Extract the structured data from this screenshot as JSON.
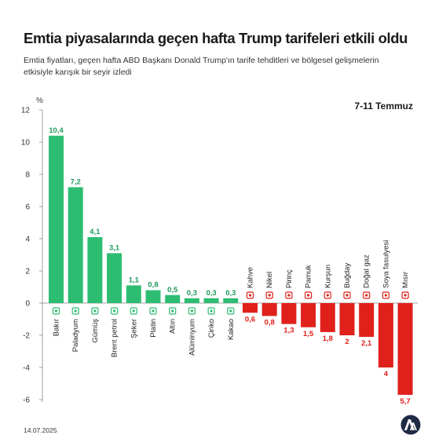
{
  "title": "Emtia piyasalarında geçen hafta Trump tarifeleri etkili oldu",
  "subtitle": "Emtia fiyatları, geçen hafta ABD Başkanı Donald Trump'ın tarife tehditleri ve bölgesel gelişmelerin etkisiyle karışık bir seyir izledi",
  "date_range": "7-11 Temmuz",
  "footer_date": "14.07.2025",
  "colors": {
    "positive": "#2dbd72",
    "negative": "#e0201b"
  },
  "chart_data": {
    "type": "bar",
    "ylabel": "%",
    "ylim": [
      -6,
      12
    ],
    "yticks": [
      -6,
      -4,
      -2,
      0,
      2,
      4,
      6,
      8,
      10,
      12
    ],
    "grid": false,
    "categories": [
      "Bakır",
      "Paladyum",
      "Gümüş",
      "Brent petrol",
      "Şeker",
      "Platin",
      "Altın",
      "Alüminyum",
      "Çinko",
      "Kakao",
      "Kahve",
      "Nikel",
      "Pirinç",
      "Pamuk",
      "Kurşun",
      "Buğday",
      "Doğal gaz",
      "Soya fasulyesi",
      "Mısır"
    ],
    "values": [
      10.4,
      7.2,
      4.1,
      3.1,
      1.1,
      0.8,
      0.5,
      0.3,
      0.3,
      0.3,
      -0.6,
      -0.8,
      -1.3,
      -1.5,
      -1.8,
      -2,
      -2.1,
      -4,
      -5.7
    ],
    "value_labels": [
      "10,4",
      "7,2",
      "4,1",
      "3,1",
      "1,1",
      "0,8",
      "0,5",
      "0,3",
      "0,3",
      "0,3",
      "0,6",
      "0,8",
      "1,3",
      "1,5",
      "1,8",
      "2",
      "2,1",
      "4",
      "5,7"
    ],
    "icons": [
      "copper-icon",
      "palladium-icon",
      "silver-icon",
      "oil-icon",
      "sugar-icon",
      "platinum-icon",
      "gold-icon",
      "aluminum-icon",
      "zinc-icon",
      "cocoa-icon",
      "coffee-icon",
      "nickel-icon",
      "rice-icon",
      "cotton-icon",
      "lead-icon",
      "wheat-icon",
      "natural-gas-icon",
      "soybean-icon",
      "corn-icon"
    ]
  }
}
